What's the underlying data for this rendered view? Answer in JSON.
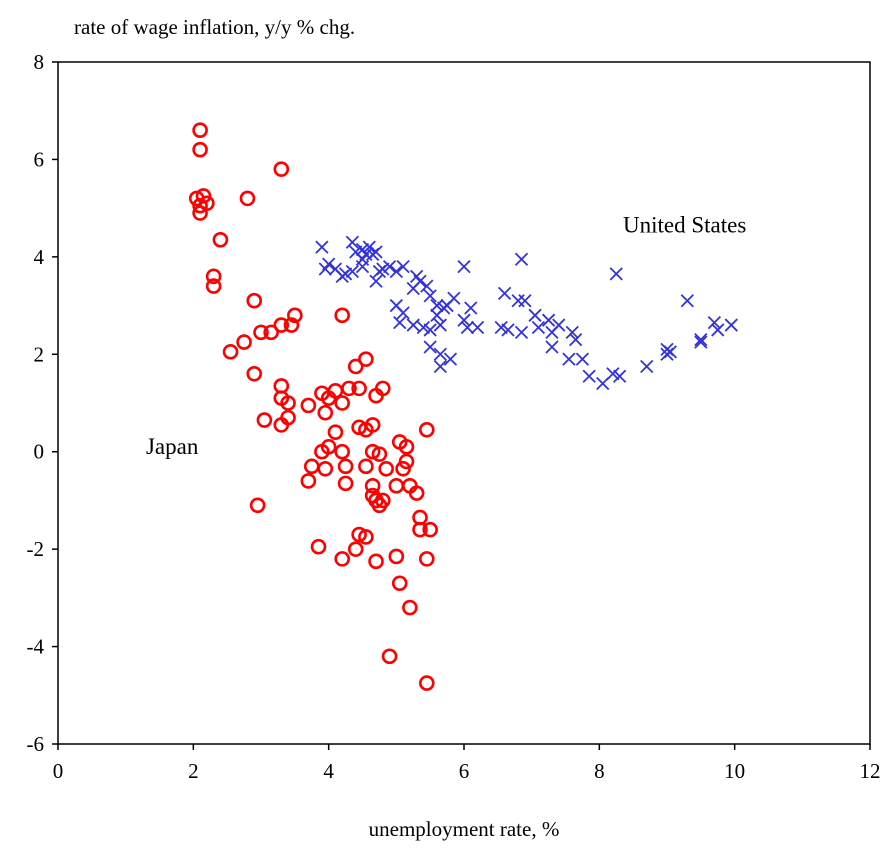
{
  "chart_data": {
    "type": "scatter",
    "title": "",
    "ylabel": "rate of wage inflation, y/y % chg.",
    "xlabel": "unemployment rate, %",
    "xlim": [
      0,
      12
    ],
    "ylim": [
      -6,
      8
    ],
    "xticks": [
      0,
      2,
      4,
      6,
      8,
      10,
      12
    ],
    "yticks": [
      -6,
      -4,
      -2,
      0,
      2,
      4,
      6,
      8
    ],
    "grid": false,
    "legend": "none",
    "annotations": [
      {
        "text": "United States",
        "series": "United States"
      },
      {
        "text": "Japan",
        "series": "Japan"
      }
    ],
    "series": [
      {
        "name": "Japan",
        "marker": "circle",
        "color": "#ff0000",
        "points": [
          [
            2.1,
            6.6
          ],
          [
            2.1,
            6.2
          ],
          [
            3.3,
            5.8
          ],
          [
            2.05,
            5.2
          ],
          [
            2.15,
            5.25
          ],
          [
            2.1,
            5.05
          ],
          [
            2.2,
            5.1
          ],
          [
            2.1,
            4.9
          ],
          [
            2.8,
            5.2
          ],
          [
            2.4,
            4.35
          ],
          [
            2.3,
            3.6
          ],
          [
            2.3,
            3.4
          ],
          [
            2.9,
            3.1
          ],
          [
            3.5,
            2.8
          ],
          [
            4.2,
            2.8
          ],
          [
            3.3,
            2.6
          ],
          [
            3.45,
            2.6
          ],
          [
            3.0,
            2.45
          ],
          [
            3.15,
            2.45
          ],
          [
            2.75,
            2.25
          ],
          [
            2.55,
            2.05
          ],
          [
            4.55,
            1.9
          ],
          [
            4.4,
            1.75
          ],
          [
            2.9,
            1.6
          ],
          [
            3.3,
            1.35
          ],
          [
            4.45,
            1.3
          ],
          [
            4.8,
            1.3
          ],
          [
            3.9,
            1.2
          ],
          [
            4.1,
            1.25
          ],
          [
            4.3,
            1.3
          ],
          [
            4.7,
            1.15
          ],
          [
            3.3,
            1.1
          ],
          [
            3.4,
            1.0
          ],
          [
            4.0,
            1.1
          ],
          [
            4.2,
            1.0
          ],
          [
            3.7,
            0.95
          ],
          [
            3.95,
            0.8
          ],
          [
            3.4,
            0.7
          ],
          [
            3.05,
            0.65
          ],
          [
            3.3,
            0.55
          ],
          [
            4.65,
            0.55
          ],
          [
            4.1,
            0.4
          ],
          [
            4.45,
            0.5
          ],
          [
            4.55,
            0.45
          ],
          [
            5.45,
            0.45
          ],
          [
            5.05,
            0.2
          ],
          [
            5.15,
            0.1
          ],
          [
            4.0,
            0.1
          ],
          [
            3.9,
            0.0
          ],
          [
            4.2,
            0.0
          ],
          [
            4.65,
            0.0
          ],
          [
            4.75,
            -0.05
          ],
          [
            5.15,
            -0.2
          ],
          [
            3.75,
            -0.3
          ],
          [
            3.95,
            -0.35
          ],
          [
            4.25,
            -0.3
          ],
          [
            4.55,
            -0.3
          ],
          [
            4.85,
            -0.35
          ],
          [
            5.1,
            -0.35
          ],
          [
            3.7,
            -0.6
          ],
          [
            4.25,
            -0.65
          ],
          [
            4.65,
            -0.7
          ],
          [
            5.0,
            -0.7
          ],
          [
            5.2,
            -0.7
          ],
          [
            4.65,
            -0.9
          ],
          [
            4.7,
            -1.0
          ],
          [
            4.8,
            -1.0
          ],
          [
            4.75,
            -1.1
          ],
          [
            5.3,
            -0.85
          ],
          [
            2.95,
            -1.1
          ],
          [
            5.35,
            -1.35
          ],
          [
            5.35,
            -1.6
          ],
          [
            5.5,
            -1.6
          ],
          [
            4.45,
            -1.7
          ],
          [
            4.55,
            -1.75
          ],
          [
            3.85,
            -1.95
          ],
          [
            4.4,
            -2.0
          ],
          [
            4.2,
            -2.2
          ],
          [
            4.7,
            -2.25
          ],
          [
            5.0,
            -2.15
          ],
          [
            5.45,
            -2.2
          ],
          [
            5.05,
            -2.7
          ],
          [
            5.2,
            -3.2
          ],
          [
            4.9,
            -4.2
          ],
          [
            5.45,
            -4.75
          ]
        ]
      },
      {
        "name": "United States",
        "marker": "x",
        "color": "#3333dd",
        "points": [
          [
            3.9,
            4.2
          ],
          [
            4.0,
            3.85
          ],
          [
            3.95,
            3.75
          ],
          [
            4.1,
            3.75
          ],
          [
            4.25,
            3.65
          ],
          [
            4.35,
            3.7
          ],
          [
            4.2,
            3.6
          ],
          [
            4.5,
            3.8
          ],
          [
            4.35,
            4.3
          ],
          [
            4.4,
            4.1
          ],
          [
            4.5,
            4.15
          ],
          [
            4.55,
            4.05
          ],
          [
            4.6,
            4.2
          ],
          [
            4.7,
            4.1
          ],
          [
            4.65,
            4.05
          ],
          [
            4.5,
            3.95
          ],
          [
            4.75,
            3.7
          ],
          [
            4.8,
            3.75
          ],
          [
            4.7,
            3.5
          ],
          [
            4.9,
            3.8
          ],
          [
            5.0,
            3.7
          ],
          [
            5.1,
            3.8
          ],
          [
            5.3,
            3.6
          ],
          [
            5.35,
            3.5
          ],
          [
            5.25,
            3.35
          ],
          [
            5.45,
            3.4
          ],
          [
            5.5,
            3.2
          ],
          [
            5.6,
            3.0
          ],
          [
            5.7,
            2.95
          ],
          [
            5.85,
            3.15
          ],
          [
            5.75,
            3.0
          ],
          [
            6.0,
            3.8
          ],
          [
            6.1,
            2.95
          ],
          [
            5.0,
            3.0
          ],
          [
            5.1,
            2.85
          ],
          [
            5.05,
            2.65
          ],
          [
            5.25,
            2.6
          ],
          [
            5.4,
            2.55
          ],
          [
            5.6,
            2.8
          ],
          [
            5.65,
            2.6
          ],
          [
            5.5,
            2.5
          ],
          [
            6.0,
            2.7
          ],
          [
            6.05,
            2.55
          ],
          [
            6.2,
            2.55
          ],
          [
            6.55,
            2.55
          ],
          [
            6.6,
            3.25
          ],
          [
            6.65,
            2.5
          ],
          [
            6.8,
            3.1
          ],
          [
            6.85,
            3.95
          ],
          [
            6.9,
            3.1
          ],
          [
            6.85,
            2.45
          ],
          [
            7.05,
            2.8
          ],
          [
            7.1,
            2.55
          ],
          [
            7.25,
            2.7
          ],
          [
            7.3,
            2.45
          ],
          [
            7.4,
            2.6
          ],
          [
            7.3,
            2.15
          ],
          [
            7.6,
            2.45
          ],
          [
            7.65,
            2.3
          ],
          [
            7.55,
            1.9
          ],
          [
            7.75,
            1.9
          ],
          [
            7.85,
            1.55
          ],
          [
            8.05,
            1.4
          ],
          [
            8.2,
            1.6
          ],
          [
            8.3,
            1.55
          ],
          [
            8.25,
            3.65
          ],
          [
            8.7,
            1.75
          ],
          [
            9.0,
            2.1
          ],
          [
            9.05,
            2.05
          ],
          [
            9.0,
            2.0
          ],
          [
            9.3,
            3.1
          ],
          [
            9.5,
            2.3
          ],
          [
            9.5,
            2.25
          ],
          [
            9.7,
            2.65
          ],
          [
            9.75,
            2.5
          ],
          [
            9.95,
            2.6
          ],
          [
            5.5,
            2.15
          ],
          [
            5.65,
            2.0
          ],
          [
            5.65,
            1.75
          ],
          [
            5.8,
            1.9
          ]
        ]
      }
    ]
  }
}
